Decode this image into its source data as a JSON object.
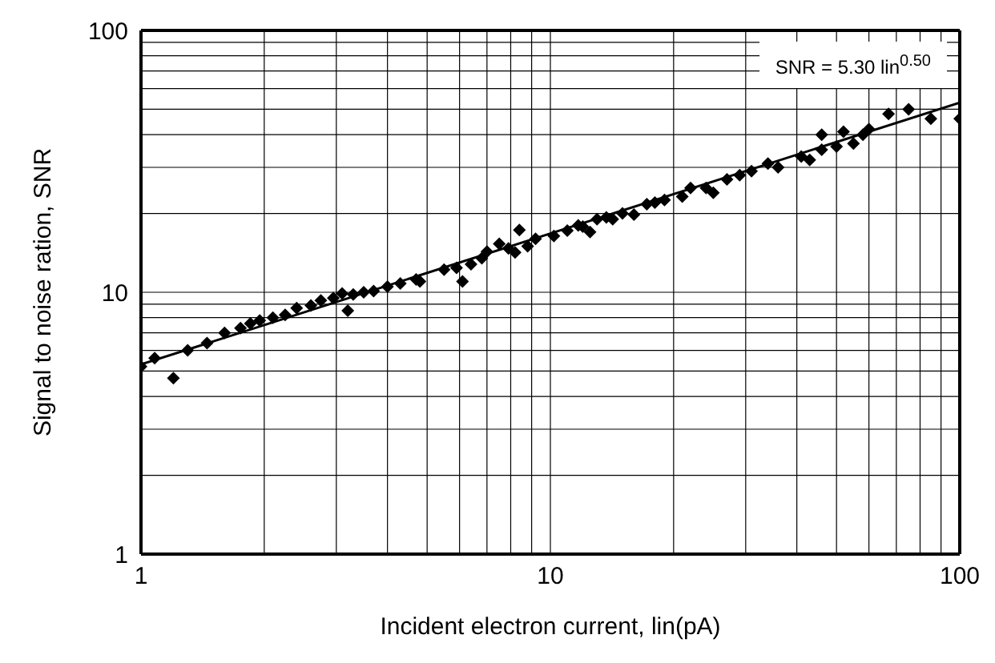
{
  "chart_data": {
    "type": "scatter",
    "xlabel": "Incident electron current, lin(pA)",
    "ylabel": "Signal to noise ration, SNR",
    "log": "xy",
    "grid": true,
    "marker": "diamond",
    "xlim": [
      1,
      100
    ],
    "ylim": [
      1,
      100
    ],
    "xticks": [
      1,
      {
        "value": 2,
        "label": null
      },
      {
        "value": 3,
        "label": null
      },
      {
        "value": 4,
        "label": null
      },
      {
        "value": 5,
        "label": null
      },
      {
        "value": 6,
        "label": null
      },
      {
        "value": 7,
        "label": null
      },
      {
        "value": 8,
        "label": null
      },
      {
        "value": 9,
        "label": null
      },
      10,
      {
        "value": 20,
        "label": null
      },
      {
        "value": 30,
        "label": null
      },
      {
        "value": 40,
        "label": null
      },
      {
        "value": 50,
        "label": null
      },
      {
        "value": 60,
        "label": null
      },
      {
        "value": 70,
        "label": null
      },
      {
        "value": 80,
        "label": null
      },
      {
        "value": 90,
        "label": null
      },
      100
    ],
    "yticks": [
      1,
      {
        "value": 2,
        "label": null
      },
      {
        "value": 3,
        "label": null
      },
      {
        "value": 4,
        "label": null
      },
      {
        "value": 5,
        "label": null
      },
      {
        "value": 6,
        "label": null
      },
      {
        "value": 7,
        "label": null
      },
      {
        "value": 8,
        "label": null
      },
      {
        "value": 9,
        "label": null
      },
      10,
      {
        "value": 20,
        "label": null
      },
      {
        "value": 30,
        "label": null
      },
      {
        "value": 40,
        "label": null
      },
      {
        "value": 50,
        "label": null
      },
      {
        "value": 60,
        "label": null
      },
      {
        "value": 70,
        "label": null
      },
      {
        "value": 80,
        "label": null
      },
      {
        "value": 90,
        "label": null
      },
      100
    ],
    "annotations": [
      "SNR = 5.30 lin$^{0.50}$"
    ],
    "series": [
      {
        "color": "#000000",
        "x": [
          1,
          1.08,
          1.2,
          1.3,
          1.45,
          1.6,
          1.75,
          1.85,
          1.95,
          2.1,
          2.25,
          2.4,
          2.6,
          2.75,
          2.95,
          3.1,
          3.2,
          3.3,
          3.5,
          3.7,
          4.0,
          4.3,
          4.7,
          4.8,
          5.5,
          5.9,
          6.1,
          6.4,
          6.8,
          7.0,
          7.5,
          7.9,
          8.2,
          8.4,
          8.8,
          9.2,
          10.2,
          11,
          11.7,
          12,
          12.5,
          13,
          13.7,
          14.2,
          15,
          16,
          17.2,
          18,
          19,
          21,
          22,
          24,
          25,
          27,
          29,
          31,
          34,
          36,
          41,
          43,
          46,
          46,
          50,
          52,
          55,
          58,
          60,
          67,
          75,
          85,
          100
        ],
        "values": [
          5.2,
          5.6,
          4.7,
          6.0,
          6.4,
          7.0,
          7.3,
          7.6,
          7.8,
          8.0,
          8.2,
          8.7,
          8.9,
          9.3,
          9.5,
          9.9,
          8.5,
          9.8,
          10.0,
          10.1,
          10.5,
          10.8,
          11.2,
          11.0,
          12.2,
          12.4,
          11.0,
          12.8,
          13.5,
          14.3,
          15.3,
          14.7,
          14.2,
          17.3,
          15.0,
          16.0,
          16.4,
          17.2,
          18.0,
          17.8,
          17.0,
          19.0,
          19.3,
          19.0,
          20,
          19.8,
          21.7,
          22,
          22.5,
          23.2,
          25,
          25,
          24,
          27,
          28,
          29,
          31,
          30,
          33,
          32,
          35,
          40,
          36,
          41,
          37,
          40,
          42,
          48,
          50,
          46,
          46
        ]
      },
      {
        "type": "line",
        "color": "#000000",
        "marker": "none",
        "x": [
          1,
          100
        ],
        "values": [
          5.3,
          53
        ]
      }
    ]
  }
}
